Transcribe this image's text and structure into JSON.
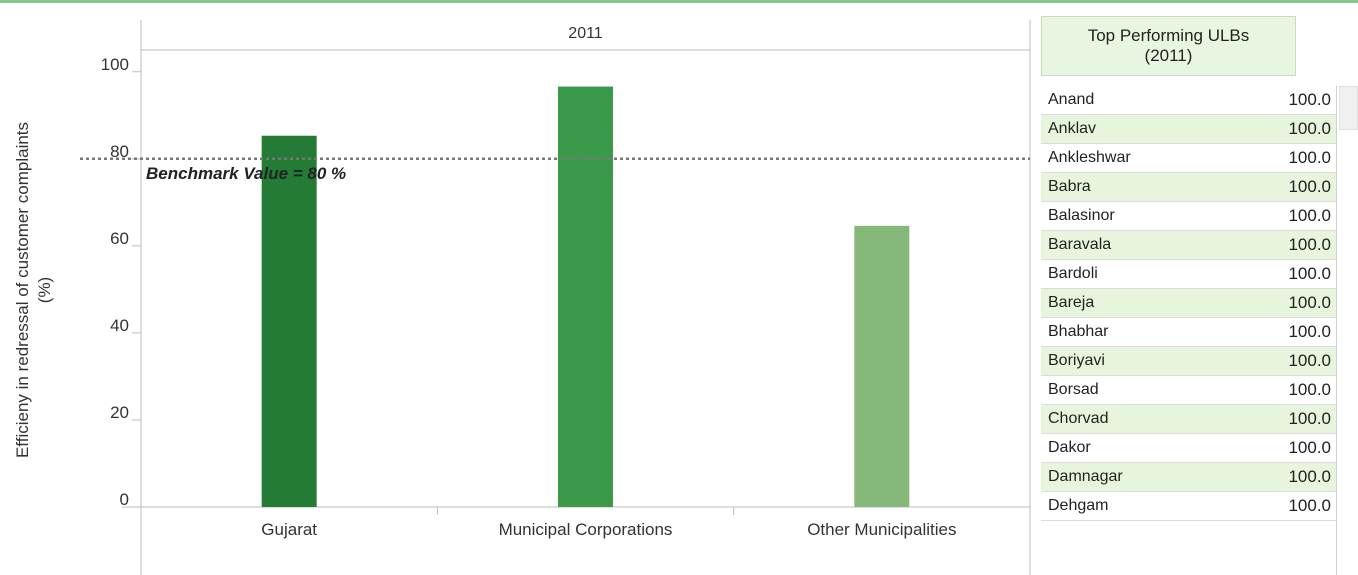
{
  "chart_data": {
    "type": "bar",
    "title": "2011",
    "ylabel": [
      "Efficieny in redressal of customer complaints",
      "(%)"
    ],
    "xlabel": "",
    "categories": [
      "Gujarat",
      "Municipal Corporations",
      "Other Municipalities"
    ],
    "values": [
      85.3,
      96.6,
      64.6
    ],
    "colors": [
      "#237b35",
      "#3a9a4a",
      "#86b87a"
    ],
    "ylim": [
      0,
      105
    ],
    "yticks": [
      0,
      20,
      40,
      60,
      80,
      100
    ],
    "benchmark": {
      "value": 80,
      "label": "Benchmark Value = 80 %"
    },
    "grid": false
  },
  "panel": {
    "title_line1": "Top Performing ULBs",
    "title_line2": "(2011)",
    "rows": [
      {
        "name": "Anand",
        "value": "100.0"
      },
      {
        "name": "Anklav",
        "value": "100.0"
      },
      {
        "name": "Ankleshwar",
        "value": "100.0"
      },
      {
        "name": "Babra",
        "value": "100.0"
      },
      {
        "name": "Balasinor",
        "value": "100.0"
      },
      {
        "name": "Baravala",
        "value": "100.0"
      },
      {
        "name": "Bardoli",
        "value": "100.0"
      },
      {
        "name": "Bareja",
        "value": "100.0"
      },
      {
        "name": "Bhabhar",
        "value": "100.0"
      },
      {
        "name": "Boriyavi",
        "value": "100.0"
      },
      {
        "name": "Borsad",
        "value": "100.0"
      },
      {
        "name": "Chorvad",
        "value": "100.0"
      },
      {
        "name": "Dakor",
        "value": "100.0"
      },
      {
        "name": "Damnagar",
        "value": "100.0"
      },
      {
        "name": "Dehgam",
        "value": "100.0"
      }
    ]
  }
}
